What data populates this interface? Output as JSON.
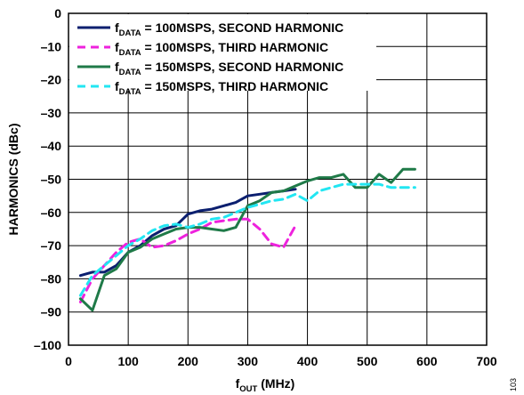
{
  "chart_data": {
    "type": "line",
    "title": "",
    "xlabel": {
      "main": "f",
      "sub": "OUT",
      "rest": " (MHz)"
    },
    "ylabel": "HARMONICS (dBc)",
    "xlim": [
      0,
      700
    ],
    "ylim": [
      -100,
      0
    ],
    "xticks": [
      0,
      100,
      200,
      300,
      400,
      500,
      600,
      700
    ],
    "yticks": [
      0,
      -10,
      -20,
      -30,
      -40,
      -50,
      -60,
      -70,
      -80,
      -90,
      -100
    ],
    "grid": true,
    "legend_position": "top-left",
    "series": [
      {
        "name": {
          "main": "f",
          "sub": "DATA",
          "rest": " = 100MSPS, SECOND HARMONIC"
        },
        "color": "#0b1f6f",
        "dash": "solid",
        "x": [
          20,
          40,
          60,
          80,
          100,
          120,
          140,
          160,
          180,
          200,
          220,
          240,
          260,
          280,
          300,
          320,
          340,
          360,
          380
        ],
        "y": [
          -79,
          -78,
          -78,
          -76,
          -72,
          -70,
          -67,
          -65,
          -64,
          -60.5,
          -59.5,
          -59,
          -58,
          -57,
          -55,
          -54.5,
          -54,
          -53.5,
          -53
        ]
      },
      {
        "name": {
          "main": "f",
          "sub": "DATA",
          "rest": " = 100MSPS, THIRD HARMONIC"
        },
        "color": "#ee22dd",
        "dash": "dashed",
        "x": [
          20,
          40,
          60,
          80,
          100,
          120,
          140,
          160,
          180,
          200,
          220,
          240,
          260,
          280,
          300,
          320,
          340,
          360,
          380
        ],
        "y": [
          -87,
          -80,
          -76,
          -72,
          -69,
          -68,
          -70.5,
          -70,
          -68.5,
          -66.5,
          -65,
          -63,
          -62.5,
          -62,
          -62,
          -65,
          -69.5,
          -70.5,
          -64
        ]
      },
      {
        "name": {
          "main": "f",
          "sub": "DATA",
          "rest": " = 150MSPS, SECOND HARMONIC"
        },
        "color": "#1f7a48",
        "dash": "solid",
        "x": [
          20,
          40,
          60,
          80,
          100,
          120,
          140,
          160,
          180,
          200,
          220,
          240,
          260,
          280,
          300,
          320,
          340,
          360,
          380,
          400,
          420,
          440,
          460,
          480,
          500,
          520,
          540,
          560,
          580
        ],
        "y": [
          -86,
          -89.5,
          -79,
          -77,
          -72,
          -70.5,
          -68,
          -66.5,
          -65,
          -64.5,
          -64.5,
          -65,
          -65.5,
          -64.5,
          -58,
          -56.5,
          -54,
          -53.5,
          -52,
          -50.5,
          -49.5,
          -49.5,
          -48.5,
          -52.5,
          -52.5,
          -48.5,
          -51,
          -47,
          -47
        ]
      },
      {
        "name": {
          "main": "f",
          "sub": "DATA",
          "rest": " = 150MSPS, THIRD HARMONIC"
        },
        "color": "#22e6f2",
        "dash": "dashed",
        "x": [
          20,
          40,
          60,
          80,
          100,
          120,
          140,
          160,
          180,
          200,
          220,
          240,
          260,
          280,
          300,
          320,
          340,
          360,
          380,
          400,
          420,
          440,
          460,
          480,
          500,
          520,
          540,
          560,
          580
        ],
        "y": [
          -85,
          -79,
          -76,
          -73,
          -70,
          -68,
          -65.5,
          -64,
          -63.5,
          -64.5,
          -63.5,
          -62,
          -61.5,
          -60,
          -58.5,
          -57.5,
          -56.5,
          -56,
          -54.5,
          -56.5,
          -53.5,
          -52.5,
          -51.5,
          -51.5,
          -51.5,
          -51.5,
          -52.5,
          -52.5,
          -52.5
        ]
      }
    ],
    "side_note": "103"
  }
}
